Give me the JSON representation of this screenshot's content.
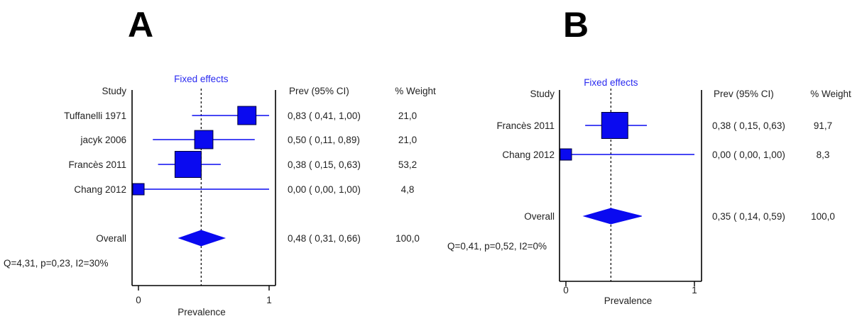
{
  "chart_data": [
    {
      "type": "forest",
      "panel": "A",
      "method": "Fixed effects",
      "column_headers": {
        "study": "Study",
        "estimate": "Prev (95% CI)",
        "weight": "% Weight"
      },
      "xlabel": "Prevalence",
      "xlim": [
        0,
        1
      ],
      "xticks": [
        "0",
        "1"
      ],
      "reference_line": 0.48,
      "studies": [
        {
          "name": "Tuffanelli 1971",
          "est": 0.83,
          "lo": 0.41,
          "hi": 1.0,
          "weight": 21.0,
          "ci_text": "0,83  (  0,41,  1,00)",
          "weight_text": "21,0"
        },
        {
          "name": "jacyk 2006",
          "est": 0.5,
          "lo": 0.11,
          "hi": 0.89,
          "weight": 21.0,
          "ci_text": "0,50  (  0,11,  0,89)",
          "weight_text": "21,0"
        },
        {
          "name": "Francès 2011",
          "est": 0.38,
          "lo": 0.15,
          "hi": 0.63,
          "weight": 53.2,
          "ci_text": "0,38  (  0,15,  0,63)",
          "weight_text": "53,2"
        },
        {
          "name": "Chang 2012",
          "est": 0.0,
          "lo": 0.0,
          "hi": 1.0,
          "weight": 4.8,
          "ci_text": "0,00  (  0,00,  1,00)",
          "weight_text": "4,8"
        }
      ],
      "overall": {
        "name": "Overall",
        "est": 0.48,
        "lo": 0.31,
        "hi": 0.66,
        "ci_text": "0,48  (  0,31,  0,66)",
        "weight_text": "100,0"
      },
      "heterogeneity": "Q=4,31, p=0,23, I2=30%"
    },
    {
      "type": "forest",
      "panel": "B",
      "method": "Fixed effects",
      "column_headers": {
        "study": "Study",
        "estimate": "Prev (95% CI)",
        "weight": "% Weight"
      },
      "xlabel": "Prevalence",
      "xlim": [
        0,
        1
      ],
      "xticks": [
        "0",
        "1"
      ],
      "reference_line": 0.35,
      "studies": [
        {
          "name": "Francès 2011",
          "est": 0.38,
          "lo": 0.15,
          "hi": 0.63,
          "weight": 91.7,
          "ci_text": "0,38  (  0,15,  0,63)",
          "weight_text": "91,7"
        },
        {
          "name": "Chang 2012",
          "est": 0.0,
          "lo": 0.0,
          "hi": 1.0,
          "weight": 8.3,
          "ci_text": "0,00  (  0,00,  1,00)",
          "weight_text": "8,3"
        }
      ],
      "overall": {
        "name": "Overall",
        "est": 0.35,
        "lo": 0.14,
        "hi": 0.59,
        "ci_text": "0,35  (  0,14,  0,59)",
        "weight_text": "100,0"
      },
      "heterogeneity": "Q=0,41, p=0,52, I2=0%"
    }
  ]
}
